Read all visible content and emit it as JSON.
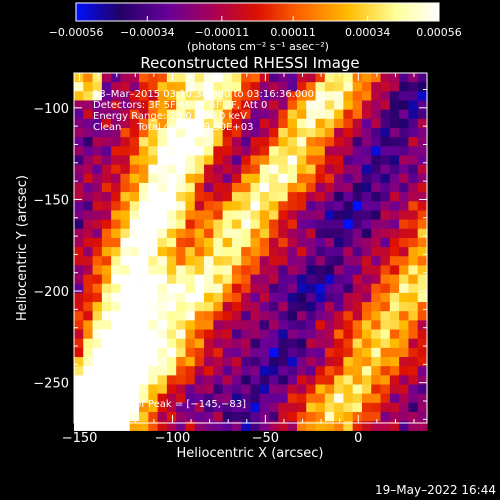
{
  "chart_data": {
    "type": "heatmap",
    "title": "Reconstructed RHESSI Image",
    "xlabel": "Heliocentric X (arcsec)",
    "ylabel": "Heliocentric Y (arcsec)",
    "xlim": [
      -153,
      37
    ],
    "ylim": [
      -272,
      -81
    ],
    "x_ticks": [
      -150,
      -100,
      -50,
      0
    ],
    "x_tick_labels": [
      "−150",
      "−100",
      "−50",
      "0"
    ],
    "y_ticks": [
      -100,
      -150,
      -200,
      -250
    ],
    "y_tick_labels": [
      "−100",
      "−150",
      "−200",
      "−250"
    ],
    "colorbar": {
      "min": -0.00056,
      "max": 0.00056,
      "tick_values": [
        -0.00056,
        -0.00034,
        -0.00011,
        0.00011,
        0.00034,
        0.00056
      ],
      "tick_labels": [
        "−0.00056",
        "−0.00034",
        "−0.00011",
        "0.00011",
        "0.00034",
        "0.00056"
      ],
      "units": "(photons cm⁻² s⁻¹ asec⁻²)",
      "colormap": [
        "#0010ff",
        "#220066",
        "#660099",
        "#aa0055",
        "#dd1100",
        "#ff6600",
        "#ffbb00",
        "#ffff99",
        "#ffffff"
      ]
    },
    "annotations": {
      "time_range": "13–Mar–2015 03:10:36.000 to 03:16:36.000",
      "detectors": "Detectors: 3F 5F 6F 7F 8F 9F, Att 0",
      "energy_range": "Energy Range: 25.0 – 50.0 keV",
      "method": "Clean     Total counts: 9.50E+03",
      "peak": "Position of Peak = [−145,−83]"
    },
    "peak": [
      -145,
      -83
    ]
  },
  "footer_timestamp": "19–May–2022 16:44"
}
